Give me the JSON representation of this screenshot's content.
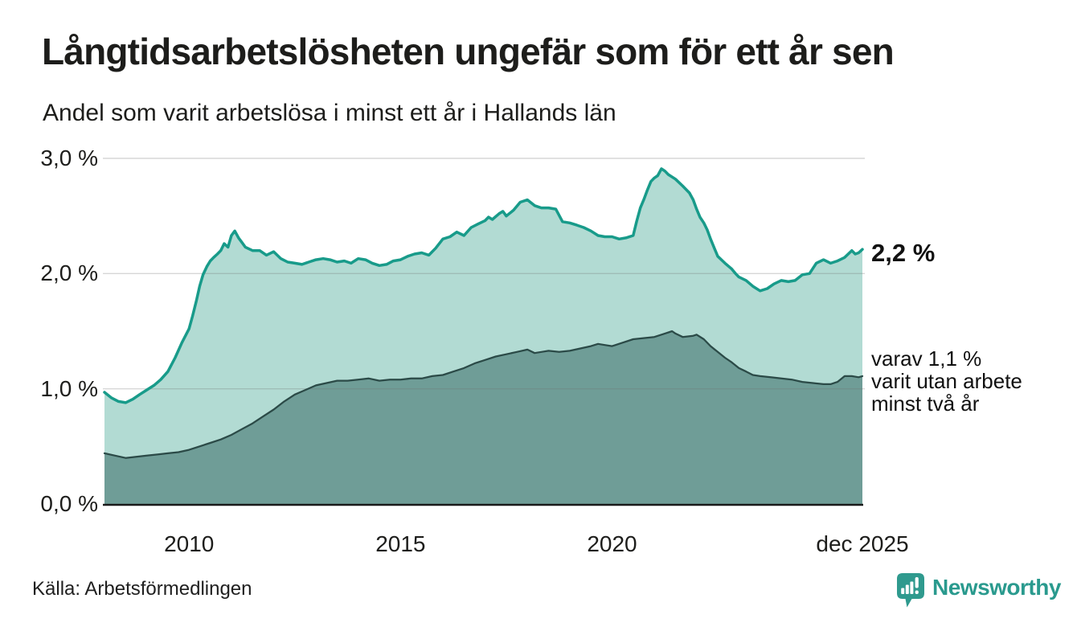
{
  "header": {
    "title": "Långtidsarbetslösheten ungefär som för ett år sen",
    "subtitle": "Andel som varit arbetslösa i minst ett år i Hallands län"
  },
  "footer": {
    "source": "Källa: Arbetsförmedlingen",
    "logo_text": "Newsworthy",
    "logo_icon": "bar-chart-pin-icon"
  },
  "colors": {
    "line_one_year": "#189b8a",
    "fill_one_year": "#b2dbd3",
    "line_two_years": "#2b4a47",
    "fill_two_years": "#6f9d97",
    "gridline": "#d6d6d6",
    "axis_baseline": "#1a1a1a",
    "text": "#1d1d1b",
    "brand_teal": "#2a9a8e"
  },
  "chart_data": {
    "type": "area",
    "title": "Långtidsarbetslösheten ungefär som för ett år sen",
    "subtitle": "Andel som varit arbetslösa i minst ett år i Hallands län",
    "unit": "%",
    "xlim": [
      2008,
      2025.92
    ],
    "ylim": [
      0,
      3
    ],
    "grid": "horizontal",
    "legend": "none",
    "y_ticks": [
      {
        "label": "3,0 %",
        "value": 3.0
      },
      {
        "label": "2,0 %",
        "value": 2.0
      },
      {
        "label": "1,0 %",
        "value": 1.0
      },
      {
        "label": "0,0 %",
        "value": 0.0
      }
    ],
    "x_ticks": [
      {
        "label": "2010",
        "year": 2010
      },
      {
        "label": "2015",
        "year": 2015
      },
      {
        "label": "2020",
        "year": 2020
      },
      {
        "label": "dec 2025",
        "year": 2025.92
      }
    ],
    "annotations": {
      "end_value": "2,2 %",
      "end_note": "varav 1,1 %\nvarit utan arbete\nminst två år"
    },
    "series": [
      {
        "name": "Andel som varit arbetslösa i minst ett år",
        "line_color": "#189b8a",
        "fill_color": "#b2dbd3",
        "line_width": 3.5,
        "end_value": 2.2,
        "points": [
          [
            2008.0,
            0.97
          ],
          [
            2008.17,
            0.92
          ],
          [
            2008.33,
            0.89
          ],
          [
            2008.5,
            0.88
          ],
          [
            2008.67,
            0.91
          ],
          [
            2008.83,
            0.95
          ],
          [
            2009.0,
            0.99
          ],
          [
            2009.17,
            1.03
          ],
          [
            2009.33,
            1.08
          ],
          [
            2009.5,
            1.15
          ],
          [
            2009.67,
            1.27
          ],
          [
            2009.83,
            1.4
          ],
          [
            2010.0,
            1.52
          ],
          [
            2010.08,
            1.63
          ],
          [
            2010.17,
            1.76
          ],
          [
            2010.25,
            1.89
          ],
          [
            2010.33,
            1.99
          ],
          [
            2010.42,
            2.06
          ],
          [
            2010.5,
            2.11
          ],
          [
            2010.58,
            2.14
          ],
          [
            2010.67,
            2.17
          ],
          [
            2010.75,
            2.2
          ],
          [
            2010.83,
            2.26
          ],
          [
            2010.92,
            2.23
          ],
          [
            2011.0,
            2.33
          ],
          [
            2011.08,
            2.37
          ],
          [
            2011.17,
            2.31
          ],
          [
            2011.25,
            2.27
          ],
          [
            2011.33,
            2.23
          ],
          [
            2011.5,
            2.2
          ],
          [
            2011.67,
            2.2
          ],
          [
            2011.83,
            2.16
          ],
          [
            2012.0,
            2.19
          ],
          [
            2012.17,
            2.13
          ],
          [
            2012.33,
            2.1
          ],
          [
            2012.5,
            2.09
          ],
          [
            2012.67,
            2.08
          ],
          [
            2012.83,
            2.1
          ],
          [
            2013.0,
            2.12
          ],
          [
            2013.17,
            2.13
          ],
          [
            2013.33,
            2.12
          ],
          [
            2013.5,
            2.1
          ],
          [
            2013.67,
            2.11
          ],
          [
            2013.83,
            2.09
          ],
          [
            2014.0,
            2.13
          ],
          [
            2014.17,
            2.12
          ],
          [
            2014.33,
            2.09
          ],
          [
            2014.5,
            2.07
          ],
          [
            2014.67,
            2.08
          ],
          [
            2014.83,
            2.11
          ],
          [
            2015.0,
            2.12
          ],
          [
            2015.17,
            2.15
          ],
          [
            2015.33,
            2.17
          ],
          [
            2015.5,
            2.18
          ],
          [
            2015.67,
            2.16
          ],
          [
            2015.83,
            2.22
          ],
          [
            2016.0,
            2.3
          ],
          [
            2016.17,
            2.32
          ],
          [
            2016.33,
            2.36
          ],
          [
            2016.5,
            2.33
          ],
          [
            2016.67,
            2.4
          ],
          [
            2016.83,
            2.43
          ],
          [
            2017.0,
            2.46
          ],
          [
            2017.08,
            2.49
          ],
          [
            2017.17,
            2.47
          ],
          [
            2017.33,
            2.52
          ],
          [
            2017.42,
            2.54
          ],
          [
            2017.5,
            2.5
          ],
          [
            2017.67,
            2.55
          ],
          [
            2017.83,
            2.62
          ],
          [
            2018.0,
            2.64
          ],
          [
            2018.17,
            2.59
          ],
          [
            2018.33,
            2.57
          ],
          [
            2018.5,
            2.57
          ],
          [
            2018.67,
            2.56
          ],
          [
            2018.83,
            2.45
          ],
          [
            2019.0,
            2.44
          ],
          [
            2019.17,
            2.42
          ],
          [
            2019.33,
            2.4
          ],
          [
            2019.5,
            2.37
          ],
          [
            2019.67,
            2.33
          ],
          [
            2019.83,
            2.32
          ],
          [
            2020.0,
            2.32
          ],
          [
            2020.17,
            2.3
          ],
          [
            2020.33,
            2.31
          ],
          [
            2020.5,
            2.33
          ],
          [
            2020.58,
            2.45
          ],
          [
            2020.67,
            2.57
          ],
          [
            2020.75,
            2.64
          ],
          [
            2020.83,
            2.72
          ],
          [
            2020.92,
            2.8
          ],
          [
            2021.0,
            2.83
          ],
          [
            2021.08,
            2.85
          ],
          [
            2021.17,
            2.91
          ],
          [
            2021.25,
            2.89
          ],
          [
            2021.33,
            2.86
          ],
          [
            2021.5,
            2.82
          ],
          [
            2021.67,
            2.76
          ],
          [
            2021.83,
            2.7
          ],
          [
            2021.92,
            2.64
          ],
          [
            2022.0,
            2.56
          ],
          [
            2022.08,
            2.49
          ],
          [
            2022.17,
            2.44
          ],
          [
            2022.25,
            2.38
          ],
          [
            2022.33,
            2.3
          ],
          [
            2022.42,
            2.22
          ],
          [
            2022.5,
            2.15
          ],
          [
            2022.67,
            2.09
          ],
          [
            2022.83,
            2.04
          ],
          [
            2022.92,
            2.0
          ],
          [
            2023.0,
            1.97
          ],
          [
            2023.17,
            1.94
          ],
          [
            2023.33,
            1.89
          ],
          [
            2023.5,
            1.85
          ],
          [
            2023.67,
            1.87
          ],
          [
            2023.83,
            1.91
          ],
          [
            2024.0,
            1.94
          ],
          [
            2024.17,
            1.93
          ],
          [
            2024.33,
            1.94
          ],
          [
            2024.5,
            1.99
          ],
          [
            2024.67,
            2.0
          ],
          [
            2024.83,
            2.09
          ],
          [
            2025.0,
            2.12
          ],
          [
            2025.17,
            2.09
          ],
          [
            2025.33,
            2.11
          ],
          [
            2025.5,
            2.14
          ],
          [
            2025.67,
            2.2
          ],
          [
            2025.75,
            2.17
          ],
          [
            2025.83,
            2.18
          ],
          [
            2025.92,
            2.21
          ]
        ]
      },
      {
        "name": "varav arbetslösa minst två år",
        "line_color": "#2b4a47",
        "fill_color": "#6f9d97",
        "line_width": 2.25,
        "end_value": 1.1,
        "points": [
          [
            2008.0,
            0.44
          ],
          [
            2008.25,
            0.42
          ],
          [
            2008.5,
            0.4
          ],
          [
            2008.75,
            0.41
          ],
          [
            2009.0,
            0.42
          ],
          [
            2009.25,
            0.43
          ],
          [
            2009.5,
            0.44
          ],
          [
            2009.75,
            0.45
          ],
          [
            2010.0,
            0.47
          ],
          [
            2010.25,
            0.5
          ],
          [
            2010.5,
            0.53
          ],
          [
            2010.75,
            0.56
          ],
          [
            2011.0,
            0.6
          ],
          [
            2011.25,
            0.65
          ],
          [
            2011.5,
            0.7
          ],
          [
            2011.75,
            0.76
          ],
          [
            2012.0,
            0.82
          ],
          [
            2012.25,
            0.89
          ],
          [
            2012.5,
            0.95
          ],
          [
            2012.75,
            0.99
          ],
          [
            2013.0,
            1.03
          ],
          [
            2013.25,
            1.05
          ],
          [
            2013.5,
            1.07
          ],
          [
            2013.75,
            1.07
          ],
          [
            2014.0,
            1.08
          ],
          [
            2014.25,
            1.09
          ],
          [
            2014.5,
            1.07
          ],
          [
            2014.75,
            1.08
          ],
          [
            2015.0,
            1.08
          ],
          [
            2015.25,
            1.09
          ],
          [
            2015.5,
            1.09
          ],
          [
            2015.75,
            1.11
          ],
          [
            2016.0,
            1.12
          ],
          [
            2016.25,
            1.15
          ],
          [
            2016.5,
            1.18
          ],
          [
            2016.75,
            1.22
          ],
          [
            2017.0,
            1.25
          ],
          [
            2017.25,
            1.28
          ],
          [
            2017.5,
            1.3
          ],
          [
            2017.75,
            1.32
          ],
          [
            2018.0,
            1.34
          ],
          [
            2018.17,
            1.31
          ],
          [
            2018.33,
            1.32
          ],
          [
            2018.5,
            1.33
          ],
          [
            2018.75,
            1.32
          ],
          [
            2019.0,
            1.33
          ],
          [
            2019.25,
            1.35
          ],
          [
            2019.5,
            1.37
          ],
          [
            2019.67,
            1.39
          ],
          [
            2019.83,
            1.38
          ],
          [
            2020.0,
            1.37
          ],
          [
            2020.25,
            1.4
          ],
          [
            2020.5,
            1.43
          ],
          [
            2020.75,
            1.44
          ],
          [
            2021.0,
            1.45
          ],
          [
            2021.25,
            1.48
          ],
          [
            2021.42,
            1.5
          ],
          [
            2021.5,
            1.48
          ],
          [
            2021.67,
            1.45
          ],
          [
            2021.92,
            1.46
          ],
          [
            2022.0,
            1.47
          ],
          [
            2022.17,
            1.43
          ],
          [
            2022.33,
            1.37
          ],
          [
            2022.5,
            1.32
          ],
          [
            2022.67,
            1.27
          ],
          [
            2022.83,
            1.23
          ],
          [
            2023.0,
            1.18
          ],
          [
            2023.17,
            1.15
          ],
          [
            2023.33,
            1.12
          ],
          [
            2023.5,
            1.11
          ],
          [
            2023.75,
            1.1
          ],
          [
            2024.0,
            1.09
          ],
          [
            2024.25,
            1.08
          ],
          [
            2024.5,
            1.06
          ],
          [
            2024.75,
            1.05
          ],
          [
            2025.0,
            1.04
          ],
          [
            2025.17,
            1.04
          ],
          [
            2025.33,
            1.06
          ],
          [
            2025.5,
            1.11
          ],
          [
            2025.67,
            1.11
          ],
          [
            2025.83,
            1.1
          ],
          [
            2025.92,
            1.11
          ]
        ]
      }
    ]
  }
}
